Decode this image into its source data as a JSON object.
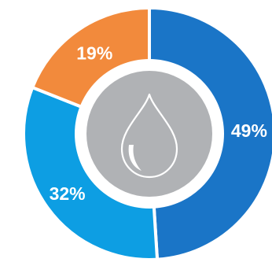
{
  "chart_data": {
    "type": "pie",
    "style": "donut",
    "categories": [
      "",
      "",
      ""
    ],
    "values": [
      49,
      32,
      19
    ],
    "value_labels": [
      "49%",
      "32%",
      "19%"
    ],
    "colors": [
      "#1a75c7",
      "#0d9ee3",
      "#f28a3c"
    ],
    "center_icon": "water-drop-icon",
    "center_color": "#b0b2b5",
    "title": "",
    "legend": "none"
  }
}
